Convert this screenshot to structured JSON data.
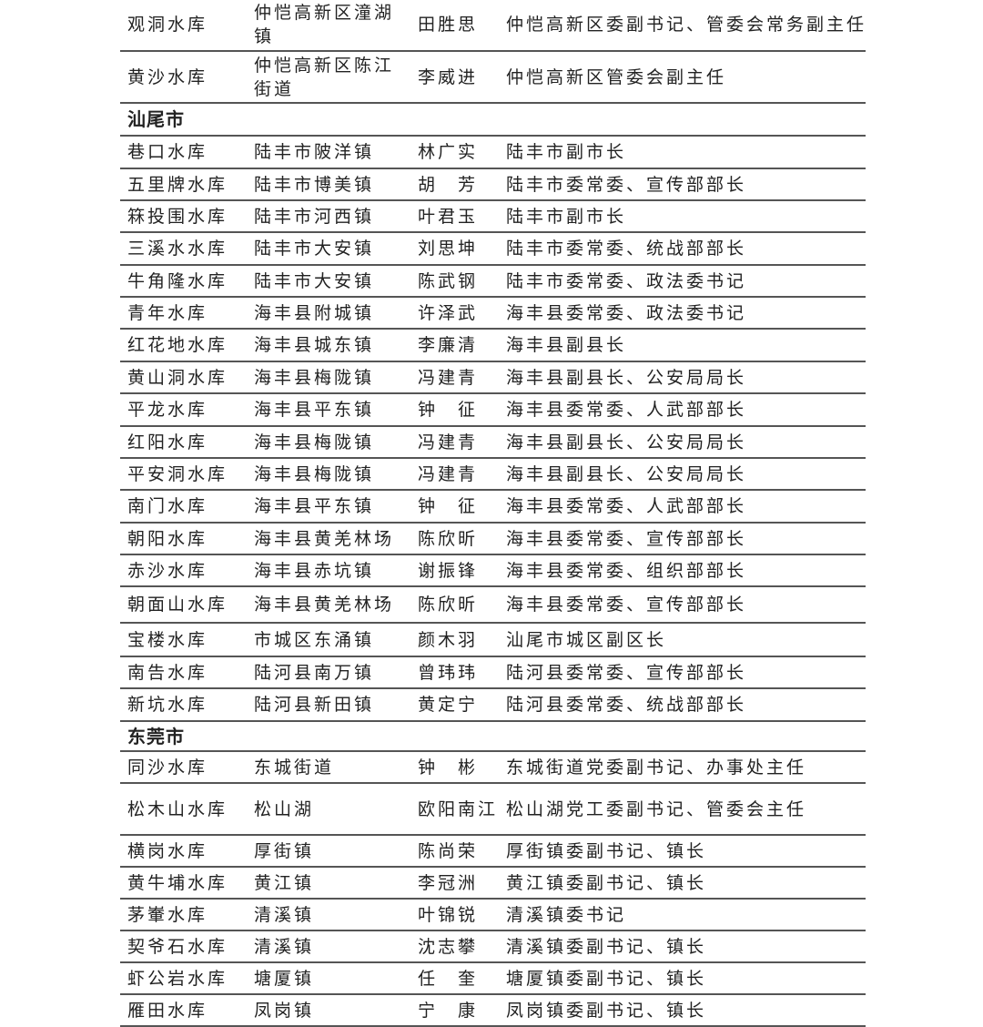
{
  "rows": [
    {
      "r": "观洞水库",
      "loc": "仲恺高新区潼湖镇",
      "name": "田胜思",
      "title": "仲恺高新区委副书记、管委会常务副主任"
    },
    {
      "r": "黄沙水库",
      "loc": "仲恺高新区陈江街道",
      "name": "李威进",
      "title": "仲恺高新区管委会副主任"
    },
    {
      "section": "汕尾市"
    },
    {
      "r": "巷口水库",
      "loc": "陆丰市陂洋镇",
      "name": "林广实",
      "title": "陆丰市副市长"
    },
    {
      "r": "五里牌水库",
      "loc": "陆丰市博美镇",
      "name": "胡　芳",
      "title": "陆丰市委常委、宣传部部长"
    },
    {
      "r": "箖投围水库",
      "loc": "陆丰市河西镇",
      "name": "叶君玉",
      "title": "陆丰市副市长"
    },
    {
      "r": "三溪水水库",
      "loc": "陆丰市大安镇",
      "name": "刘思坤",
      "title": "陆丰市委常委、统战部部长"
    },
    {
      "r": "牛角隆水库",
      "loc": "陆丰市大安镇",
      "name": "陈武钢",
      "title": "陆丰市委常委、政法委书记"
    },
    {
      "r": "青年水库",
      "loc": "海丰县附城镇",
      "name": "许泽武",
      "title": "海丰县委常委、政法委书记"
    },
    {
      "r": "红花地水库",
      "loc": "海丰县城东镇",
      "name": "李廉清",
      "title": "海丰县副县长"
    },
    {
      "r": "黄山洞水库",
      "loc": "海丰县梅陇镇",
      "name": "冯建青",
      "title": "海丰县副县长、公安局局长"
    },
    {
      "r": "平龙水库",
      "loc": "海丰县平东镇",
      "name": "钟　征",
      "title": "海丰县委常委、人武部部长"
    },
    {
      "r": "红阳水库",
      "loc": "海丰县梅陇镇",
      "name": "冯建青",
      "title": "海丰县副县长、公安局局长"
    },
    {
      "r": "平安洞水库",
      "loc": "海丰县梅陇镇",
      "name": "冯建青",
      "title": "海丰县副县长、公安局局长"
    },
    {
      "r": "南门水库",
      "loc": "海丰县平东镇",
      "name": "钟　征",
      "title": "海丰县委常委、人武部部长"
    },
    {
      "r": "朝阳水库",
      "loc": "海丰县黄羌林场",
      "name": "陈欣昕",
      "title": "海丰县委常委、宣传部部长"
    },
    {
      "r": "赤沙水库",
      "loc": "海丰县赤坑镇",
      "name": "谢振锋",
      "title": "海丰县委常委、组织部部长"
    },
    {
      "r": "朝面山水库",
      "loc": "海丰县黄羌林场",
      "name": "陈欣昕",
      "title": "海丰县委常委、宣传部部长"
    },
    {
      "r": "宝楼水库",
      "loc": "市城区东涌镇",
      "name": "颜木羽",
      "title": "汕尾市城区副区长"
    },
    {
      "r": "南告水库",
      "loc": "陆河县南万镇",
      "name": "曾玮玮",
      "title": "陆河县委常委、宣传部部长"
    },
    {
      "r": "新坑水库",
      "loc": "陆河县新田镇",
      "name": "黄定宁",
      "title": "陆河县委常委、统战部部长"
    },
    {
      "section": "东莞市"
    },
    {
      "r": "同沙水库",
      "loc": "东城街道",
      "name": "钟　彬",
      "title": "东城街道党委副书记、办事处主任"
    },
    {
      "r": "松木山水库",
      "loc": "松山湖",
      "name": "欧阳南江",
      "title": "松山湖党工委副书记、管委会主任"
    },
    {
      "r": "横岗水库",
      "loc": "厚街镇",
      "name": "陈尚荣",
      "title": "厚街镇委副书记、镇长"
    },
    {
      "r": "黄牛埔水库",
      "loc": "黄江镇",
      "name": "李冠洲",
      "title": "黄江镇委副书记、镇长"
    },
    {
      "r": "茅輋水库",
      "loc": "清溪镇",
      "name": "叶锦锐",
      "title": "清溪镇委书记"
    },
    {
      "r": "契爷石水库",
      "loc": "清溪镇",
      "name": "沈志攀",
      "title": "清溪镇委副书记、镇长"
    },
    {
      "r": "虾公岩水库",
      "loc": "塘厦镇",
      "name": "任　奎",
      "title": "塘厦镇委副书记、镇长"
    },
    {
      "r": "雁田水库",
      "loc": "凤岗镇",
      "name": "宁　康",
      "title": "凤岗镇委副书记、镇长"
    }
  ]
}
